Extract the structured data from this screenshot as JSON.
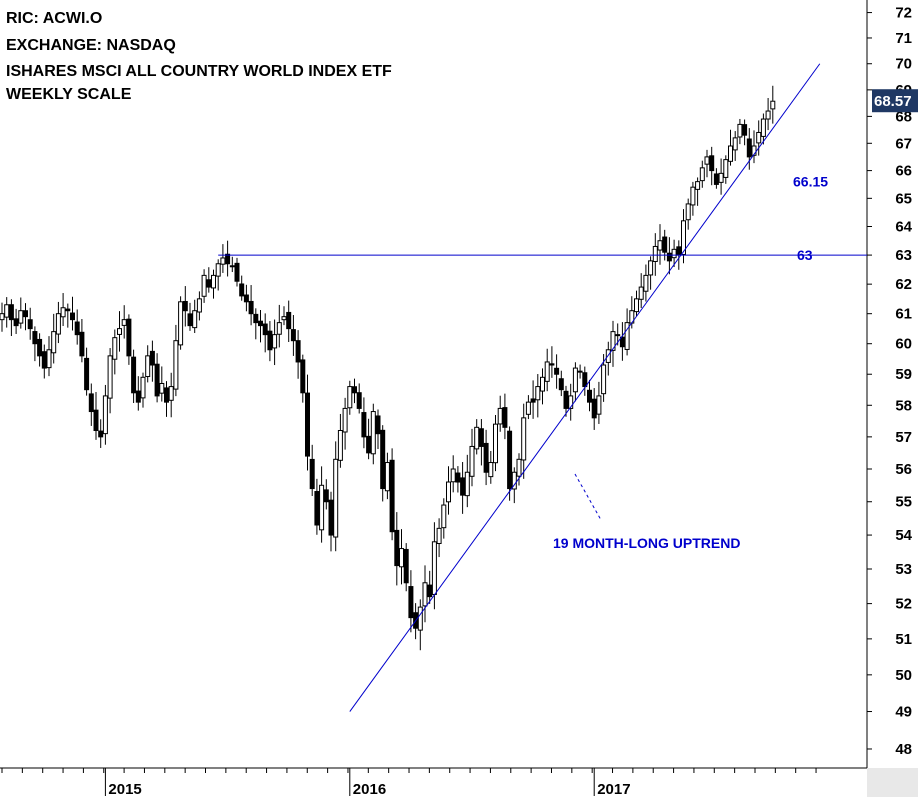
{
  "header": {
    "ric": "RIC: ACWI.O",
    "exchange": "EXCHANGE: NASDAQ",
    "name": "ISHARES MSCI ALL COUNTRY WORLD INDEX ETF",
    "scale": "WEEKLY SCALE"
  },
  "colors": {
    "line": "#0000cc",
    "annotation": "#0000cc",
    "price_tag_bg": "#1f3864",
    "candle_up": "#ffffff",
    "candle_down": "#000000",
    "grid": "#cccccc"
  },
  "chart_data": {
    "type": "candlestick",
    "xlabel": "",
    "ylabel": "",
    "ylim": [
      47.5,
      72.5
    ],
    "scale": "log",
    "grid": false,
    "y_ticks": [
      48,
      49,
      50,
      51,
      52,
      53,
      54,
      55,
      56,
      57,
      58,
      59,
      60,
      61,
      62,
      63,
      64,
      65,
      66,
      67,
      68,
      69,
      70,
      71,
      72
    ],
    "x_labels": [
      {
        "label": "2015",
        "week": 22
      },
      {
        "label": "2016",
        "week": 74
      },
      {
        "label": "2017",
        "week": 126
      }
    ],
    "weeks_total": 174,
    "closes": [
      61.0,
      61.3,
      60.8,
      60.6,
      61.1,
      60.9,
      60.5,
      60.0,
      59.6,
      59.2,
      59.8,
      60.4,
      61.0,
      61.2,
      61.1,
      60.8,
      60.3,
      59.6,
      58.5,
      57.8,
      57.2,
      57.0,
      58.3,
      59.6,
      60.2,
      60.5,
      60.8,
      59.6,
      58.4,
      58.1,
      58.9,
      59.6,
      59.3,
      58.3,
      58.7,
      58.1,
      58.6,
      60.1,
      61.4,
      61.1,
      60.6,
      61.1,
      61.5,
      62.3,
      61.9,
      62.3,
      62.7,
      62.9,
      62.7,
      62.6,
      62.1,
      61.6,
      61.4,
      61.0,
      60.7,
      60.6,
      60.3,
      59.8,
      60.3,
      60.7,
      60.9,
      60.5,
      60.1,
      59.4,
      58.4,
      56.4,
      55.4,
      54.3,
      55.5,
      55.0,
      54.0,
      56.3,
      57.2,
      57.9,
      58.6,
      58.4,
      57.9,
      57.0,
      56.5,
      57.8,
      57.1,
      55.4,
      56.2,
      54.1,
      53.1,
      53.6,
      52.6,
      51.6,
      51.3,
      51.9,
      52.6,
      52.2,
      53.8,
      54.2,
      54.9,
      55.6,
      56.0,
      55.6,
      55.2,
      55.9,
      56.7,
      57.3,
      56.7,
      55.9,
      56.2,
      57.4,
      57.9,
      57.3,
      55.4,
      55.9,
      56.3,
      57.6,
      58.1,
      58.1,
      58.6,
      58.9,
      59.4,
      59.3,
      59.0,
      58.5,
      57.9,
      58.3,
      59.2,
      59.1,
      58.6,
      58.1,
      57.6,
      58.3,
      59.3,
      59.8,
      60.4,
      60.3,
      59.9,
      60.7,
      61.1,
      61.5,
      61.9,
      62.3,
      62.8,
      63.3,
      63.5,
      63.1,
      62.8,
      63.2,
      63.0,
      64.2,
      64.8,
      65.4,
      65.6,
      66.1,
      66.5,
      66.0,
      65.5,
      65.9,
      66.4,
      66.9,
      67.2,
      67.7,
      67.3,
      66.5,
      66.9,
      67.4,
      67.9,
      68.2,
      68.57
    ],
    "ohlc_note": "weekly candles; highs/lows approximate",
    "lines": [
      {
        "name": "horizontal-resistance",
        "y": 63,
        "label": "63"
      },
      {
        "name": "uptrend",
        "from": {
          "week": 74,
          "y": 49.0
        },
        "to": {
          "week": 174,
          "y": 70.0
        }
      }
    ],
    "annotations": [
      {
        "text": "66.15",
        "value": 66.15
      },
      {
        "text": "63",
        "value": 63
      },
      {
        "text": "19 MONTH-LONG UPTREND"
      }
    ],
    "last_price": "68.57"
  }
}
